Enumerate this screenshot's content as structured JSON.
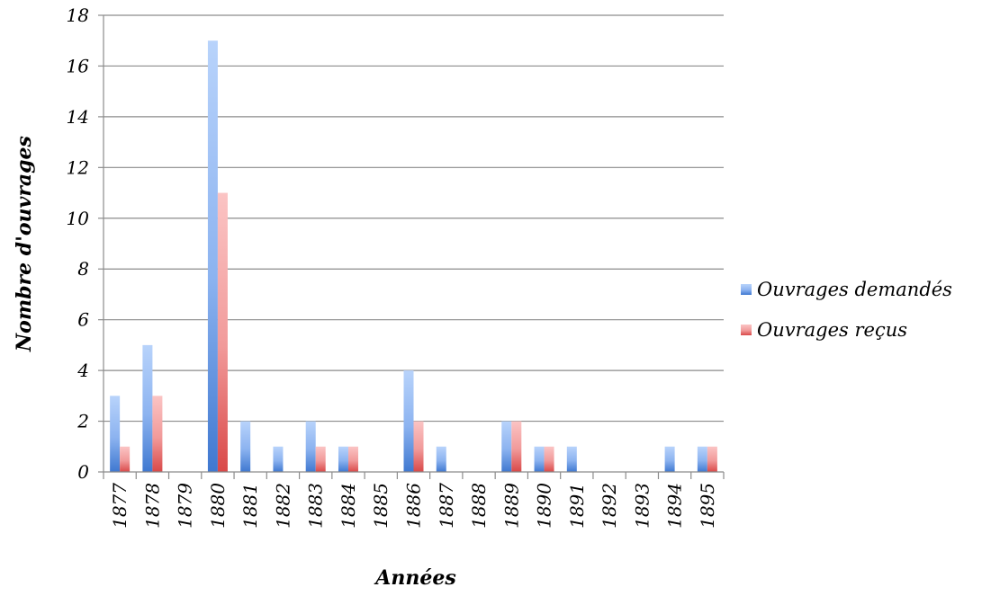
{
  "chart_data": {
    "type": "bar",
    "title": "",
    "xlabel": "Années",
    "ylabel": "Nombre d'ouvrages",
    "ylim": [
      0,
      18
    ],
    "ytick_step": 2,
    "grid": true,
    "legend_position": "right",
    "categories": [
      "1877",
      "1878",
      "1879",
      "1880",
      "1881",
      "1882",
      "1883",
      "1884",
      "1885",
      "1886",
      "1887",
      "1888",
      "1889",
      "1890",
      "1891",
      "1892",
      "1893",
      "1894",
      "1895"
    ],
    "series": [
      {
        "name": "Ouvrages demandés",
        "color": "#5b8fd9",
        "values": [
          3,
          5,
          0,
          17,
          2,
          1,
          2,
          1,
          0,
          4,
          1,
          0,
          2,
          1,
          1,
          0,
          0,
          1,
          1
        ]
      },
      {
        "name": "Ouvrages reçus",
        "color": "#e06060",
        "values": [
          1,
          3,
          0,
          11,
          0,
          0,
          1,
          1,
          0,
          2,
          0,
          0,
          2,
          1,
          0,
          0,
          0,
          0,
          1
        ]
      }
    ]
  }
}
